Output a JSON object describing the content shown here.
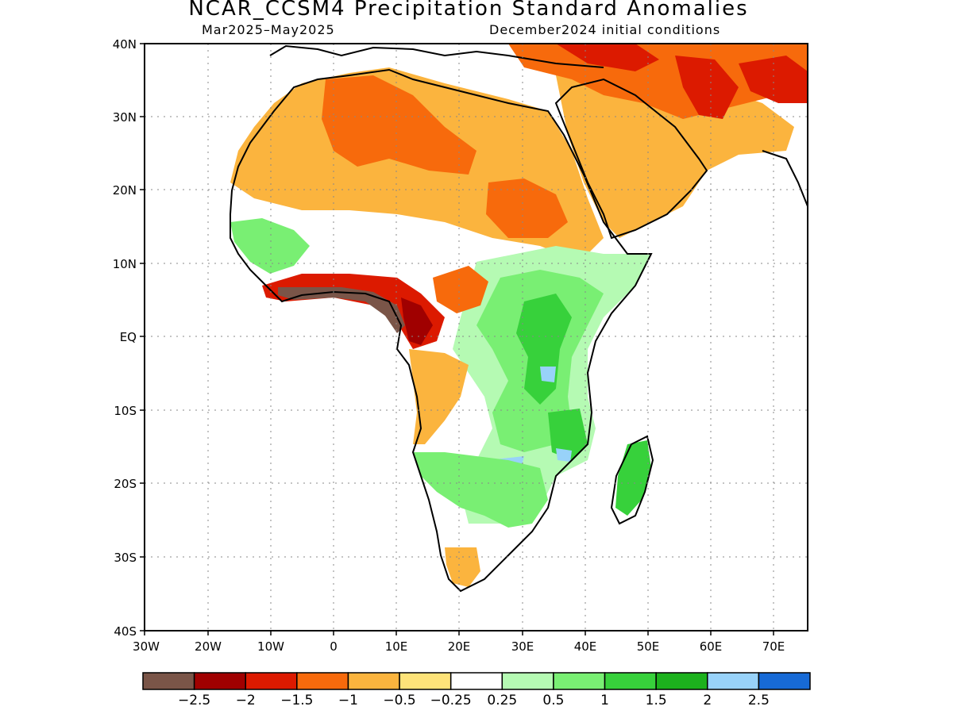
{
  "title": "NCAR_CCSM4 Precipitation Standard Anomalies",
  "subtitle_left": "Mar2025–May2025",
  "subtitle_right": "December2024 initial conditions",
  "lat_labels": [
    "40N",
    "30N",
    "20N",
    "10N",
    "EQ",
    "10S",
    "20S",
    "30S",
    "40S"
  ],
  "lon_labels": [
    "30W",
    "20W",
    "10W",
    "0",
    "10E",
    "20E",
    "30E",
    "40E",
    "50E",
    "60E",
    "70E"
  ],
  "colorbar": {
    "colors": [
      "#7a5548",
      "#a00000",
      "#dc1a00",
      "#f76a0c",
      "#fbb43e",
      "#fee379",
      "#ffffff",
      "#b5fab3",
      "#79ef73",
      "#37d13b",
      "#1cb11d",
      "#98d2f9",
      "#176ad6"
    ],
    "labels": [
      "−2.5",
      "−2",
      "−1.5",
      "−1",
      "−0.5",
      "−0.25",
      "0.25",
      "0.5",
      "1",
      "1.5",
      "2",
      "2.5"
    ]
  },
  "colors": {
    "dry_extreme": "#7a5548",
    "dry_strong": "#a00000",
    "dry": "#f76a0c",
    "wet": "#37d13b",
    "wet_extreme": "#98d2f9"
  }
}
